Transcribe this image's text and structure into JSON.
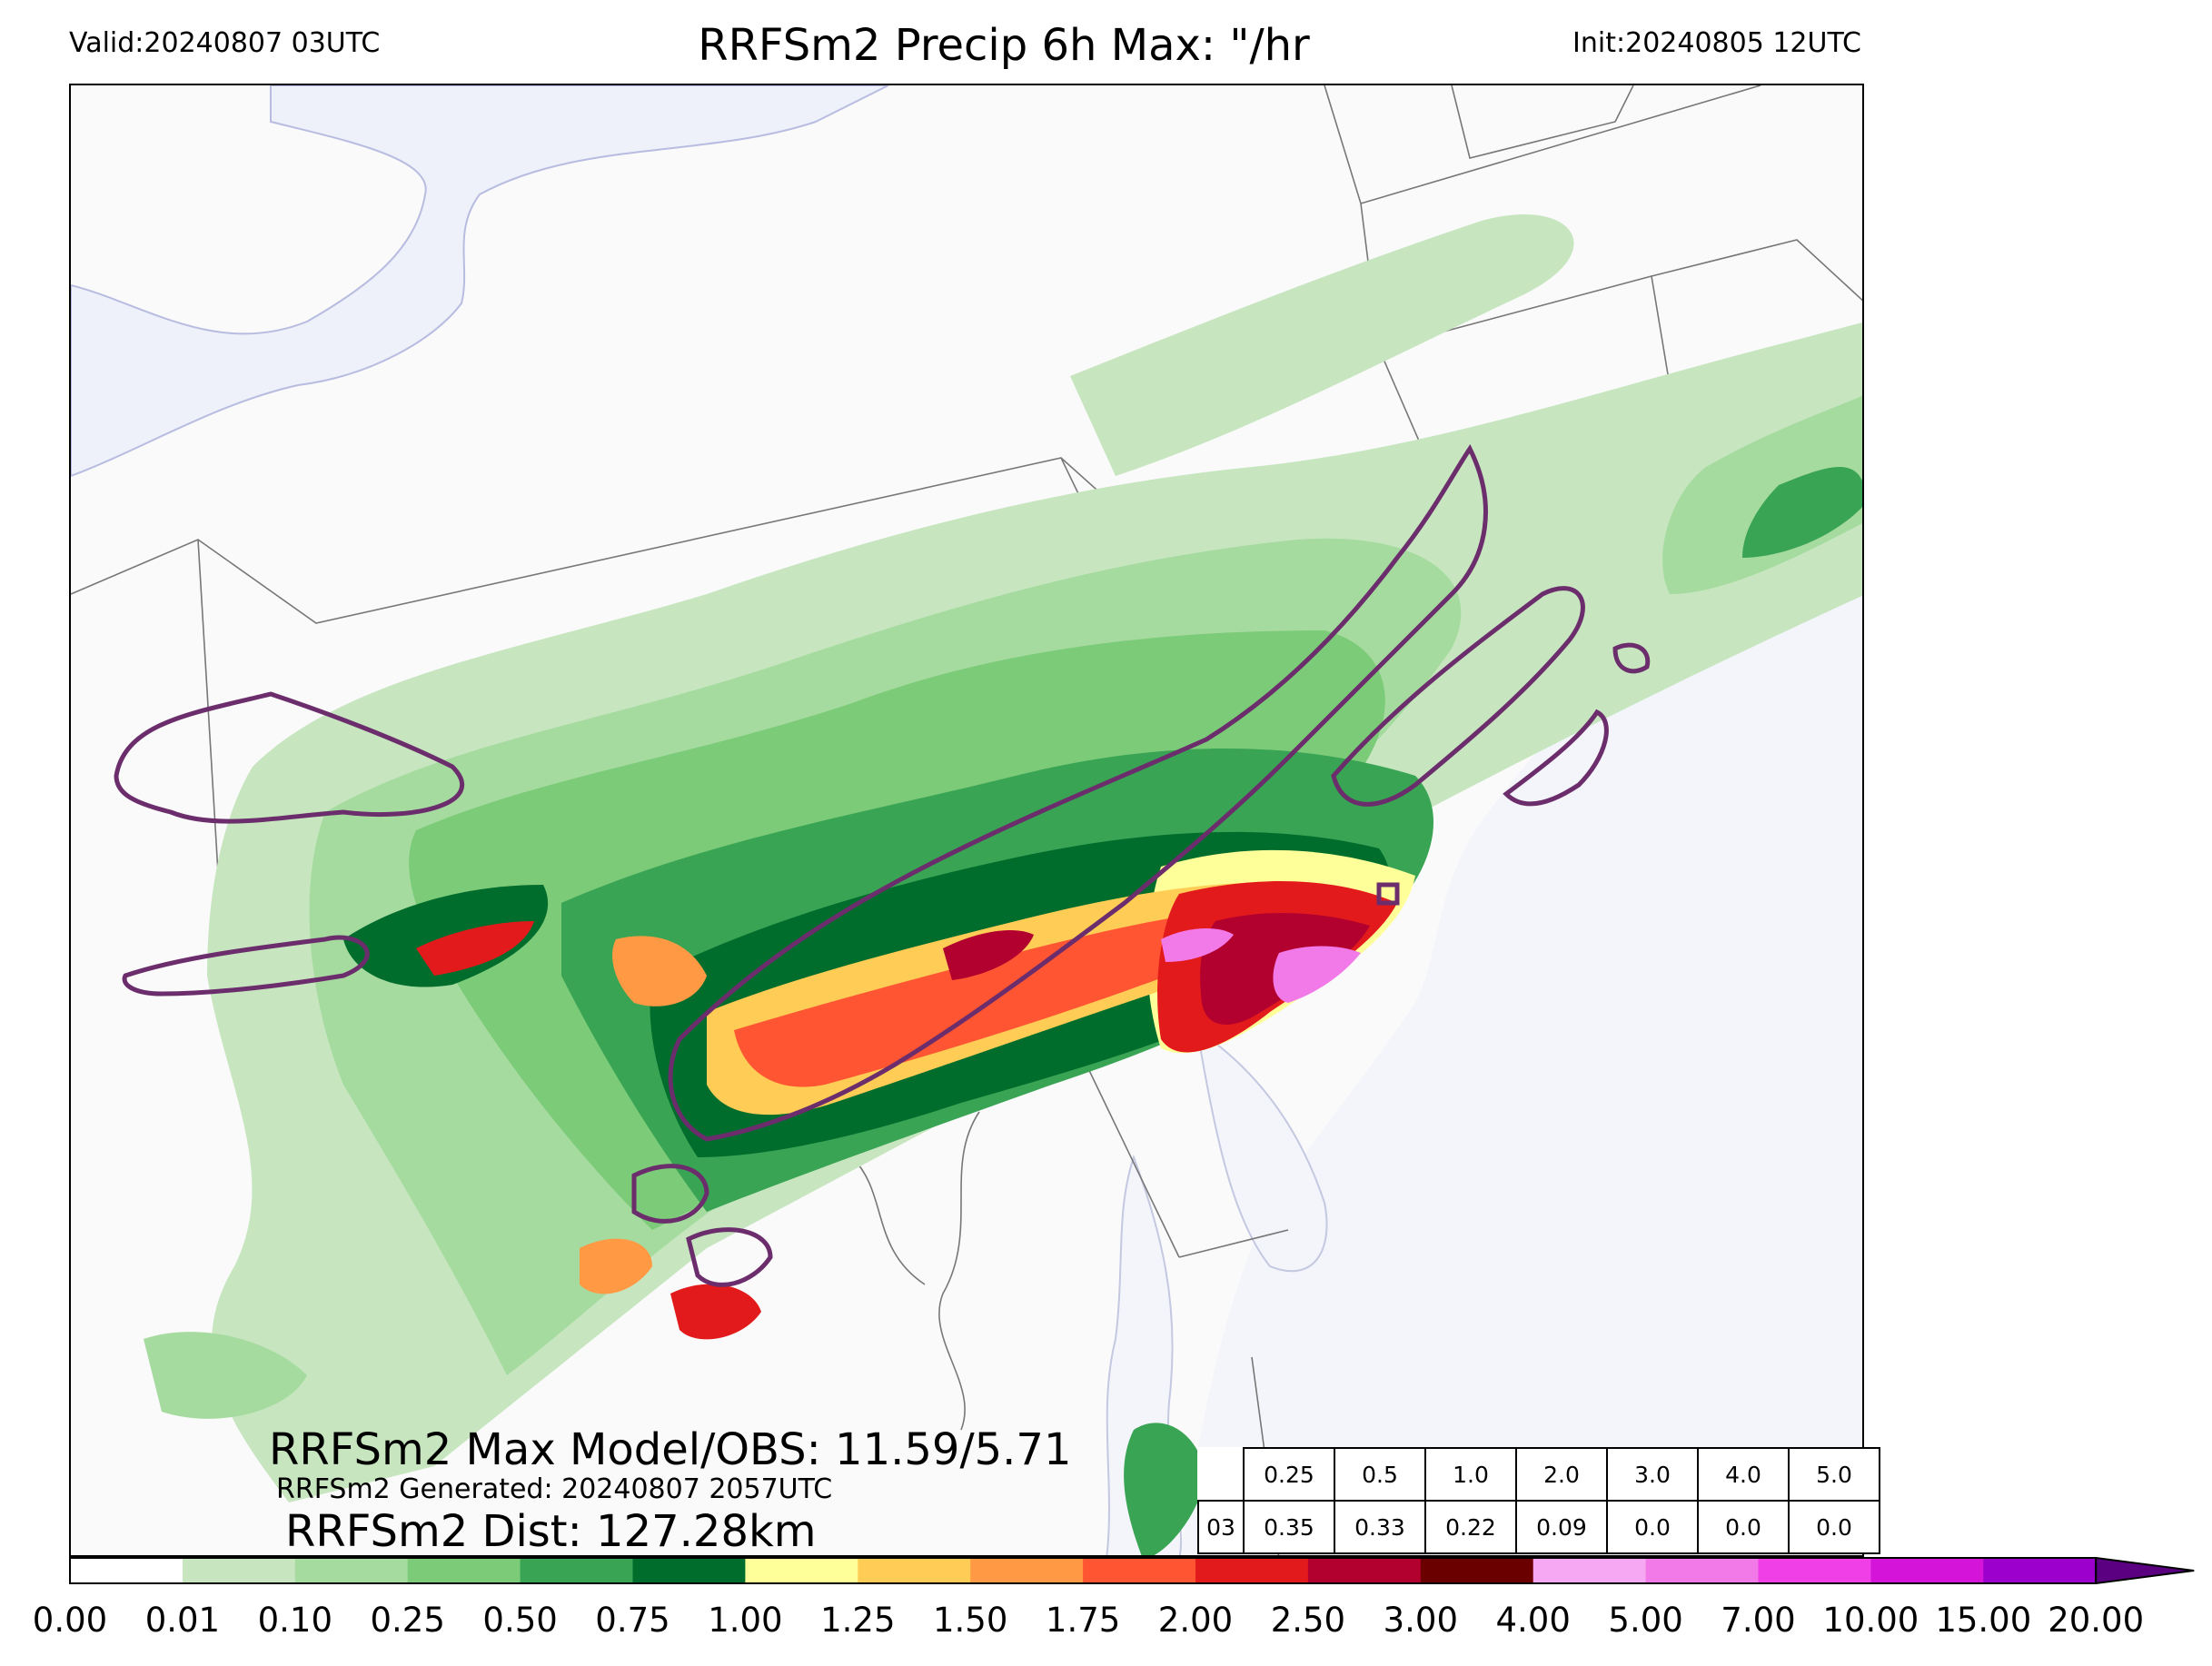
{
  "header": {
    "valid": "Valid:20240807 03UTC",
    "title": "RRFSm2 Precip 6h Max: \"/hr",
    "init": "Init:20240805 12UTC"
  },
  "annotations": {
    "max_model_obs": "RRFSm2 Max Model/OBS: 11.59/5.71",
    "generated": "RRFSm2 Generated: 20240807 2057UTC",
    "dist": "RRFSm2 Dist: 127.28km"
  },
  "threshold_table": {
    "thresholds": [
      "0.25",
      "0.5",
      "1.0",
      "2.0",
      "3.0",
      "4.0",
      "5.0"
    ],
    "rows": [
      {
        "hour": "03",
        "values": [
          "0.35",
          "0.33",
          "0.22",
          "0.09",
          "0.0",
          "0.0",
          "0.0"
        ]
      }
    ]
  },
  "colorbar": {
    "ticks": [
      "0.00",
      "0.01",
      "0.10",
      "0.25",
      "0.50",
      "0.75",
      "1.00",
      "1.25",
      "1.50",
      "1.75",
      "2.00",
      "2.50",
      "3.00",
      "4.00",
      "5.00",
      "7.00",
      "10.00",
      "15.00",
      "20.00"
    ],
    "colors": [
      "#ffffff",
      "#c7e6c0",
      "#a6dba0",
      "#7ccb78",
      "#39a454",
      "#006d2c",
      "#ffff99",
      "#ffcc55",
      "#ff9944",
      "#ff5533",
      "#e31a1c",
      "#b2002f",
      "#6b0000",
      "#f7a8f2",
      "#f27ae8",
      "#f03fe6",
      "#d514d9",
      "#9b00cc"
    ],
    "extend_color": "#5a0080"
  },
  "colors": {
    "water": "#f2f4fa",
    "land": "#fafafa",
    "obs_contour": "#6b2d6b",
    "boundary": "#888888"
  }
}
